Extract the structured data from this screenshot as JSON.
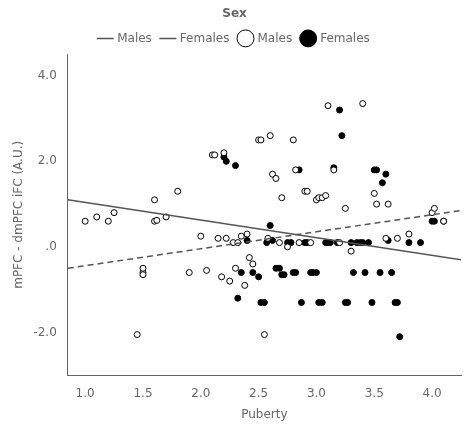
{
  "chart_data": {
    "type": "scatter",
    "xlabel": "Puberty",
    "ylabel": "mPFC - dmPFC iFC (A.U.)",
    "xlim": [
      0.85,
      4.25
    ],
    "ylim": [
      -3.0,
      4.5
    ],
    "xticks": [
      {
        "value": 1.0,
        "label": "1.0"
      },
      1.5,
      {
        "value": 2.0,
        "label": "2.0"
      },
      2.5,
      {
        "value": 3.0,
        "label": "3.0"
      },
      3.5,
      {
        "value": 4.0,
        "label": "4.0"
      }
    ],
    "yticks": [
      {
        "value": -2.0,
        "label": "-2.0"
      },
      {
        "value": 0.0,
        "label": ".0"
      },
      {
        "value": 2.0,
        "label": "2.0"
      },
      {
        "value": 4.0,
        "label": "4.0"
      }
    ],
    "grid": false,
    "legend": "top",
    "legend_title": "Sex",
    "series": [
      {
        "name": "Males",
        "type": "scatter",
        "marker": "open_circle",
        "color": "#000000",
        "x": [
          1.0,
          1.1,
          1.2,
          1.25,
          1.45,
          1.5,
          1.5,
          1.5,
          1.6,
          1.6,
          1.62,
          1.7,
          1.8,
          1.9,
          2.0,
          2.05,
          2.1,
          2.12,
          2.15,
          2.18,
          2.2,
          2.22,
          2.25,
          2.28,
          2.3,
          2.32,
          2.35,
          2.38,
          2.4,
          2.42,
          2.45,
          2.5,
          2.52,
          2.55,
          2.58,
          2.6,
          2.62,
          2.65,
          2.68,
          2.7,
          2.75,
          2.8,
          2.82,
          2.85,
          2.9,
          2.92,
          2.95,
          3.0,
          3.02,
          3.05,
          3.08,
          3.1,
          3.15,
          3.2,
          3.25,
          3.3,
          3.4,
          3.5,
          3.52,
          3.6,
          3.62,
          3.7,
          3.8,
          4.0,
          4.02,
          4.1
        ],
        "values": [
          0.6,
          0.7,
          0.6,
          0.8,
          -2.05,
          -0.6,
          -0.65,
          -0.5,
          1.1,
          0.6,
          0.62,
          0.7,
          1.3,
          -0.6,
          0.25,
          -0.55,
          2.15,
          2.15,
          0.2,
          -0.7,
          2.2,
          0.2,
          -0.8,
          0.1,
          -0.5,
          0.1,
          0.25,
          -0.9,
          0.3,
          -0.25,
          -0.4,
          2.5,
          2.5,
          -2.05,
          0.2,
          2.6,
          1.7,
          1.6,
          0.1,
          1.15,
          0.0,
          2.5,
          1.8,
          0.1,
          1.3,
          1.3,
          0.1,
          1.1,
          1.15,
          1.15,
          1.2,
          3.3,
          1.8,
          0.1,
          0.9,
          -0.1,
          3.35,
          1.25,
          1.0,
          0.2,
          1.0,
          0.2,
          0.3,
          0.8,
          0.9,
          0.6
        ]
      },
      {
        "name": "Females",
        "type": "scatter",
        "marker": "circle",
        "color": "#000000",
        "x": [
          2.2,
          2.22,
          2.3,
          2.32,
          2.35,
          2.4,
          2.45,
          2.5,
          2.52,
          2.55,
          2.57,
          2.58,
          2.6,
          2.62,
          2.65,
          2.68,
          2.7,
          2.72,
          2.75,
          2.78,
          2.8,
          2.82,
          2.85,
          2.87,
          2.9,
          2.92,
          2.95,
          2.97,
          3.0,
          3.02,
          3.05,
          3.08,
          3.1,
          3.12,
          3.15,
          3.18,
          3.2,
          3.22,
          3.25,
          3.27,
          3.3,
          3.32,
          3.35,
          3.38,
          3.4,
          3.42,
          3.45,
          3.48,
          3.5,
          3.52,
          3.55,
          3.57,
          3.6,
          3.62,
          3.65,
          3.68,
          3.7,
          3.72,
          3.8,
          3.9,
          4.0,
          4.02,
          4.1
        ],
        "values": [
          2.1,
          2.0,
          1.9,
          -1.2,
          -0.6,
          0.15,
          -0.6,
          -0.7,
          -1.3,
          -1.3,
          0.1,
          0.15,
          0.5,
          0.15,
          -0.5,
          -0.5,
          -0.65,
          -0.65,
          0.1,
          0.1,
          -0.6,
          -0.6,
          1.8,
          -1.3,
          0.1,
          0.1,
          -0.6,
          -0.6,
          -0.6,
          -1.3,
          -1.3,
          0.1,
          0.1,
          0.1,
          1.85,
          0.1,
          3.2,
          2.6,
          -1.3,
          -1.3,
          0.1,
          -0.6,
          0.1,
          0.1,
          0.1,
          -0.6,
          0.1,
          -1.3,
          1.8,
          1.8,
          -0.6,
          1.5,
          1.7,
          0.15,
          -0.6,
          -1.3,
          -1.3,
          -2.1,
          0.1,
          0.1,
          0.6,
          0.6,
          0.6
        ]
      },
      {
        "name": "Males",
        "type": "line",
        "line_style": "solid",
        "color": "#555555",
        "x": [
          0.85,
          4.25
        ],
        "values": [
          1.1,
          -0.3
        ]
      },
      {
        "name": "Females",
        "type": "line",
        "line_style": "dashed",
        "color": "#555555",
        "x": [
          0.85,
          4.25
        ],
        "values": [
          -0.5,
          0.85
        ]
      }
    ]
  }
}
